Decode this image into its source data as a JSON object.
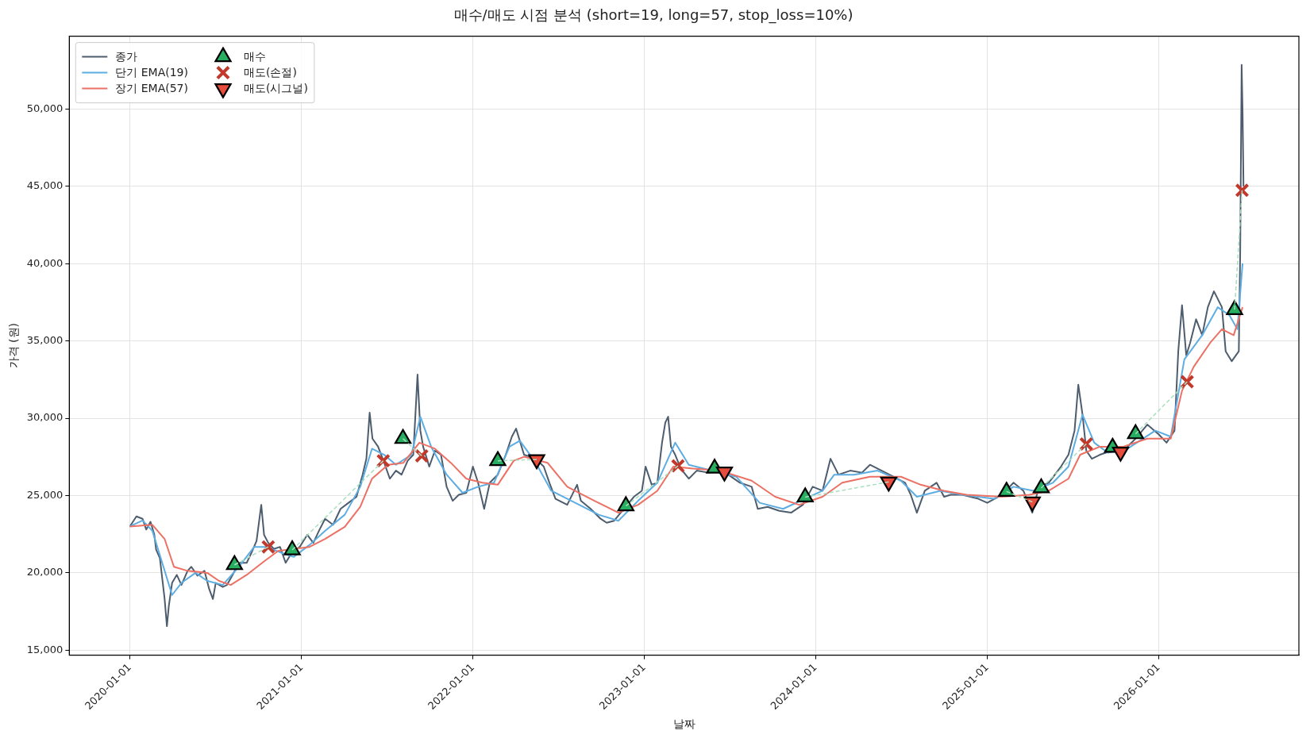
{
  "chart_data": {
    "type": "line",
    "title": "매수/매도 시점 분석 (short=19, long=57, stop_loss=10%)",
    "xlabel": "날짜",
    "ylabel": "가격 (원)",
    "xlim": [
      "2019-08-25",
      "2026-10-27"
    ],
    "xticks": [
      "2020-01-01",
      "2021-01-01",
      "2022-01-01",
      "2023-01-01",
      "2024-01-01",
      "2025-01-01",
      "2026-01-01"
    ],
    "ylim": [
      14670,
      54710
    ],
    "yticks": [
      {
        "value": 15000,
        "label": "15,000"
      },
      {
        "value": 20000,
        "label": "20,000"
      },
      {
        "value": 25000,
        "label": "25,000"
      },
      {
        "value": 30000,
        "label": "30,000"
      },
      {
        "value": 35000,
        "label": "35,000"
      },
      {
        "value": 40000,
        "label": "40,000"
      },
      {
        "value": 45000,
        "label": "45,000"
      },
      {
        "value": 50000,
        "label": "50,000"
      }
    ],
    "grid": true,
    "legend": "top left",
    "series": [
      {
        "name": "종가",
        "color": "#4d5d6e",
        "marker": "none",
        "x": [
          "2020-01-01",
          "2020-01-15",
          "2020-01-28",
          "2020-02-05",
          "2020-02-14",
          "2020-02-22",
          "2020-02-26",
          "2020-03-05",
          "2020-03-15",
          "2020-03-20",
          "2020-03-24",
          "2020-03-31",
          "2020-04-10",
          "2020-04-20",
          "2020-05-03",
          "2020-05-11",
          "2020-05-24",
          "2020-06-08",
          "2020-06-18",
          "2020-06-26",
          "2020-07-02",
          "2020-07-17",
          "2020-07-26",
          "2020-08-07",
          "2020-08-20",
          "2020-09-06",
          "2020-09-18",
          "2020-09-27",
          "2020-10-07",
          "2020-10-13",
          "2020-10-22",
          "2020-11-03",
          "2020-11-16",
          "2020-11-28",
          "2020-12-11",
          "2020-12-28",
          "2021-01-13",
          "2021-01-26",
          "2021-02-07",
          "2021-02-20",
          "2021-03-09",
          "2021-03-25",
          "2021-04-11",
          "2021-04-28",
          "2021-05-11",
          "2021-05-19",
          "2021-05-26",
          "2021-06-01",
          "2021-06-13",
          "2021-06-26",
          "2021-07-08",
          "2021-07-21",
          "2021-08-02",
          "2021-08-15",
          "2021-08-27",
          "2021-09-05",
          "2021-09-11",
          "2021-09-17",
          "2021-09-30",
          "2021-10-12",
          "2021-10-25",
          "2021-11-06",
          "2021-11-19",
          "2021-12-02",
          "2021-12-18",
          "2022-01-01",
          "2022-01-12",
          "2022-01-25",
          "2022-02-06",
          "2022-02-23",
          "2022-03-12",
          "2022-03-25",
          "2022-04-03",
          "2022-04-20",
          "2022-05-15",
          "2022-06-01",
          "2022-06-13",
          "2022-06-26",
          "2022-07-21",
          "2022-08-11",
          "2022-08-19",
          "2022-09-09",
          "2022-09-30",
          "2022-10-13",
          "2022-10-29",
          "2022-11-15",
          "2022-12-10",
          "2022-12-27",
          "2023-01-04",
          "2023-01-17",
          "2023-01-29",
          "2023-02-08",
          "2023-02-15",
          "2023-02-21",
          "2023-02-27",
          "2023-03-08",
          "2023-03-20",
          "2023-04-06",
          "2023-04-23",
          "2023-05-18",
          "2023-06-12",
          "2023-06-29",
          "2023-07-24",
          "2023-08-18",
          "2023-08-31",
          "2023-09-21",
          "2023-10-16",
          "2023-11-10",
          "2023-12-05",
          "2023-12-26",
          "2024-01-16",
          "2024-02-02",
          "2024-02-19",
          "2024-03-15",
          "2024-04-09",
          "2024-04-26",
          "2024-05-21",
          "2024-06-15",
          "2024-07-10",
          "2024-07-22",
          "2024-08-04",
          "2024-08-21",
          "2024-09-15",
          "2024-10-01",
          "2024-10-15",
          "2024-11-09",
          "2024-12-13",
          "2025-01-01",
          "2025-02-01",
          "2025-02-26",
          "2025-03-19",
          "2025-04-07",
          "2025-04-21",
          "2025-05-12",
          "2025-06-07",
          "2025-06-23",
          "2025-07-06",
          "2025-07-14",
          "2025-07-23",
          "2025-07-31",
          "2025-08-12",
          "2025-08-29",
          "2025-09-23",
          "2025-10-18",
          "2025-11-13",
          "2025-12-08",
          "2026-01-02",
          "2026-01-18",
          "2026-02-04",
          "2026-02-12",
          "2026-02-20",
          "2026-03-01",
          "2026-03-09",
          "2026-03-22",
          "2026-04-04",
          "2026-04-16",
          "2026-04-29",
          "2026-05-16",
          "2026-05-24",
          "2026-06-06",
          "2026-06-21",
          "2026-06-24",
          "2026-06-27",
          "2026-06-29",
          "2026-07-01"
        ],
        "values": [
          23000,
          23650,
          23500,
          22800,
          23300,
          22500,
          21500,
          20950,
          18350,
          16550,
          17850,
          19350,
          19870,
          19220,
          20130,
          20390,
          19820,
          20130,
          18960,
          18310,
          19350,
          19090,
          19220,
          19870,
          20650,
          20650,
          21420,
          22070,
          24400,
          22460,
          21940,
          21550,
          21680,
          20650,
          21300,
          21680,
          22460,
          21940,
          22720,
          23500,
          23110,
          24140,
          24530,
          24920,
          26350,
          27380,
          30360,
          28680,
          28160,
          27120,
          26090,
          26610,
          26350,
          27250,
          27640,
          32820,
          29200,
          28160,
          26870,
          27900,
          27640,
          25570,
          24660,
          25050,
          25180,
          26870,
          25830,
          24140,
          25830,
          26350,
          27640,
          28810,
          29330,
          27640,
          27380,
          26870,
          25830,
          24790,
          24400,
          25700,
          24660,
          24140,
          23500,
          23240,
          23370,
          24010,
          24920,
          25310,
          26870,
          25700,
          25830,
          28420,
          29720,
          30100,
          28160,
          27640,
          26740,
          26090,
          26610,
          26480,
          26740,
          26350,
          25830,
          25570,
          24140,
          24270,
          24010,
          23890,
          24400,
          25570,
          25310,
          27380,
          26350,
          26610,
          26480,
          26990,
          26610,
          26220,
          25830,
          25050,
          23890,
          25310,
          25830,
          24920,
          25050,
          25050,
          24790,
          24530,
          25050,
          25830,
          25310,
          23890,
          25570,
          25830,
          26870,
          27640,
          29200,
          32170,
          30230,
          27900,
          27380,
          27640,
          27900,
          27900,
          28680,
          29590,
          28940,
          28420,
          29200,
          34330,
          37310,
          34070,
          34840,
          36400,
          35370,
          37180,
          38210,
          37180,
          34330,
          33690,
          34330,
          40800,
          52850,
          49870,
          45000
        ]
      },
      {
        "name": "단기 EMA(19)",
        "color": "#5dade2",
        "marker": "none",
        "x": [
          "2020-01-01",
          "2020-01-28",
          "2020-02-18",
          "2020-03-10",
          "2020-03-31",
          "2020-04-20",
          "2020-05-20",
          "2020-06-14",
          "2020-07-17",
          "2020-08-20",
          "2020-09-22",
          "2020-10-17",
          "2020-11-20",
          "2020-12-15",
          "2021-01-18",
          "2021-02-20",
          "2021-04-03",
          "2021-05-06",
          "2021-05-31",
          "2021-06-26",
          "2021-07-21",
          "2021-08-23",
          "2021-09-11",
          "2021-10-04",
          "2021-11-06",
          "2021-12-10",
          "2022-01-12",
          "2022-02-15",
          "2022-03-20",
          "2022-04-11",
          "2022-05-15",
          "2022-06-17",
          "2022-08-07",
          "2022-09-26",
          "2022-11-07",
          "2022-12-19",
          "2023-01-29",
          "2023-03-08",
          "2023-04-06",
          "2023-07-16",
          "2023-09-04",
          "2023-10-24",
          "2024-01-16",
          "2024-02-10",
          "2024-03-23",
          "2024-05-12",
          "2024-07-01",
          "2024-08-04",
          "2024-09-23",
          "2024-11-09",
          "2025-01-15",
          "2025-02-26",
          "2025-04-09",
          "2025-05-21",
          "2025-06-23",
          "2025-07-23",
          "2025-08-17",
          "2025-09-15",
          "2025-10-27",
          "2025-12-25",
          "2026-01-27",
          "2026-02-25",
          "2026-04-04",
          "2026-05-07",
          "2026-06-01",
          "2026-06-18",
          "2026-06-29"
        ],
        "values": [
          23000,
          23390,
          22720,
          20650,
          18570,
          19350,
          20000,
          19480,
          19220,
          20390,
          21680,
          21680,
          21290,
          21030,
          21810,
          22720,
          23760,
          25570,
          28030,
          27640,
          26990,
          27640,
          30100,
          28160,
          26350,
          25180,
          25570,
          25830,
          28160,
          28550,
          27120,
          25310,
          24530,
          23760,
          23370,
          24660,
          25830,
          28420,
          26990,
          26220,
          24530,
          24140,
          25310,
          26350,
          26350,
          26610,
          25960,
          24920,
          25310,
          25050,
          24790,
          25570,
          25310,
          25830,
          26870,
          30230,
          28420,
          27770,
          28030,
          29200,
          28810,
          33810,
          35370,
          37180,
          36660,
          35760,
          40020
        ]
      },
      {
        "name": "장기 EMA(57)",
        "color": "#ec7063",
        "marker": "none",
        "x": [
          "2020-01-01",
          "2020-02-18",
          "2020-03-15",
          "2020-04-04",
          "2020-05-03",
          "2020-06-14",
          "2020-07-09",
          "2020-08-03",
          "2020-09-06",
          "2020-10-09",
          "2020-11-12",
          "2021-01-18",
          "2021-02-20",
          "2021-04-03",
          "2021-05-06",
          "2021-05-31",
          "2021-07-04",
          "2021-08-06",
          "2021-09-09",
          "2021-10-12",
          "2021-11-15",
          "2021-12-18",
          "2022-01-21",
          "2022-02-23",
          "2022-03-29",
          "2022-04-20",
          "2022-06-09",
          "2022-07-21",
          "2022-09-17",
          "2022-11-07",
          "2022-12-19",
          "2023-01-29",
          "2023-03-04",
          "2023-04-15",
          "2023-06-12",
          "2023-08-18",
          "2023-10-07",
          "2023-11-27",
          "2024-01-16",
          "2024-02-27",
          "2024-04-26",
          "2024-07-01",
          "2024-08-12",
          "2024-10-01",
          "2024-11-18",
          "2025-02-01",
          "2025-04-01",
          "2025-05-12",
          "2025-06-23",
          "2025-07-18",
          "2025-08-29",
          "2025-10-18",
          "2025-12-08",
          "2026-01-27",
          "2026-02-20",
          "2026-03-17",
          "2026-04-21",
          "2026-05-16",
          "2026-06-10",
          "2026-06-29"
        ],
        "values": [
          23000,
          23110,
          22200,
          20390,
          20130,
          20000,
          19480,
          19220,
          19870,
          20650,
          21420,
          21680,
          22200,
          22980,
          24270,
          26090,
          26990,
          27120,
          28420,
          28030,
          27120,
          26090,
          25830,
          25700,
          27250,
          27510,
          27120,
          25570,
          24660,
          23890,
          24400,
          25310,
          26870,
          26740,
          26610,
          25960,
          24920,
          24400,
          24920,
          25830,
          26220,
          26220,
          25700,
          25310,
          25050,
          24920,
          25050,
          25310,
          26090,
          27640,
          28160,
          28160,
          28680,
          28680,
          31780,
          33330,
          34880,
          35760,
          35370,
          37180
        ]
      },
      {
        "color": "#a9dfbf",
        "marker": "none",
        "line_style": "dashed",
        "x": [
          "2020-08-11",
          "2020-10-22"
        ],
        "values": [
          20520,
          21680
        ]
      },
      {
        "color": "#a9dfbf",
        "marker": "none",
        "line_style": "dashed",
        "x": [
          "2020-12-12",
          "2021-06-24"
        ],
        "values": [
          21480,
          27250
        ]
      },
      {
        "color": "#a9dfbf",
        "marker": "none",
        "line_style": "dashed",
        "x": [
          "2021-08-05",
          "2021-09-14"
        ],
        "values": [
          28680,
          27570
        ]
      },
      {
        "color": "#a9dfbf",
        "marker": "none",
        "line_style": "dashed",
        "x": [
          "2022-02-23",
          "2022-05-17"
        ],
        "values": [
          27250,
          27330
        ]
      },
      {
        "color": "#a9dfbf",
        "marker": "none",
        "line_style": "dashed",
        "x": [
          "2022-11-23",
          "2023-03-14"
        ],
        "values": [
          24330,
          26920
        ]
      },
      {
        "color": "#a9dfbf",
        "marker": "none",
        "line_style": "dashed",
        "x": [
          "2023-12-10",
          "2024-06-05"
        ],
        "values": [
          24900,
          25880
        ]
      },
      {
        "color": "#a9dfbf",
        "marker": "none",
        "line_style": "dashed",
        "x": [
          "2025-02-11",
          "2025-04-07"
        ],
        "values": [
          25260,
          24590
        ]
      },
      {
        "color": "#a9dfbf",
        "marker": "none",
        "line_style": "dashed",
        "x": [
          "2025-04-26",
          "2025-07-31"
        ],
        "values": [
          25490,
          28340
        ]
      },
      {
        "color": "#a9dfbf",
        "marker": "none",
        "line_style": "dashed",
        "x": [
          "2025-11-13",
          "2026-03-03"
        ],
        "values": [
          28990,
          32360
        ]
      },
      {
        "color": "#a9dfbf",
        "marker": "none",
        "line_style": "dashed",
        "x": [
          "2026-06-12",
          "2026-06-28"
        ],
        "values": [
          37020,
          44740
        ]
      },
      {
        "name": "매수",
        "type": "scatter",
        "color": "#27ae60",
        "marker": "triangle",
        "x": [
          "2020-08-11",
          "2020-12-12",
          "2021-08-05",
          "2022-02-23",
          "2022-11-23",
          "2023-05-31",
          "2023-12-10",
          "2025-02-11",
          "2025-04-26",
          "2025-09-25",
          "2025-11-13",
          "2026-06-12"
        ],
        "values": [
          20520,
          21480,
          28680,
          27250,
          24330,
          26760,
          24900,
          25260,
          25490,
          28110,
          28990,
          37020
        ]
      },
      {
        "name": "매도(손절)",
        "type": "scatter",
        "color": "#c0392b",
        "marker": "cross",
        "x": [
          "2020-10-22",
          "2021-06-24",
          "2021-09-14",
          "2023-03-14",
          "2025-07-31",
          "2026-03-03",
          "2026-06-28"
        ],
        "values": [
          21680,
          27250,
          27570,
          26920,
          28340,
          32360,
          44740
        ]
      },
      {
        "name": "매도(시그널)",
        "type": "scatter",
        "color": "#e74c3c",
        "marker": "triangle_down",
        "x": [
          "2022-05-17",
          "2023-06-21",
          "2024-06-05",
          "2025-04-07",
          "2025-10-12"
        ],
        "values": [
          27330,
          26530,
          25880,
          24590,
          27820
        ]
      }
    ]
  }
}
